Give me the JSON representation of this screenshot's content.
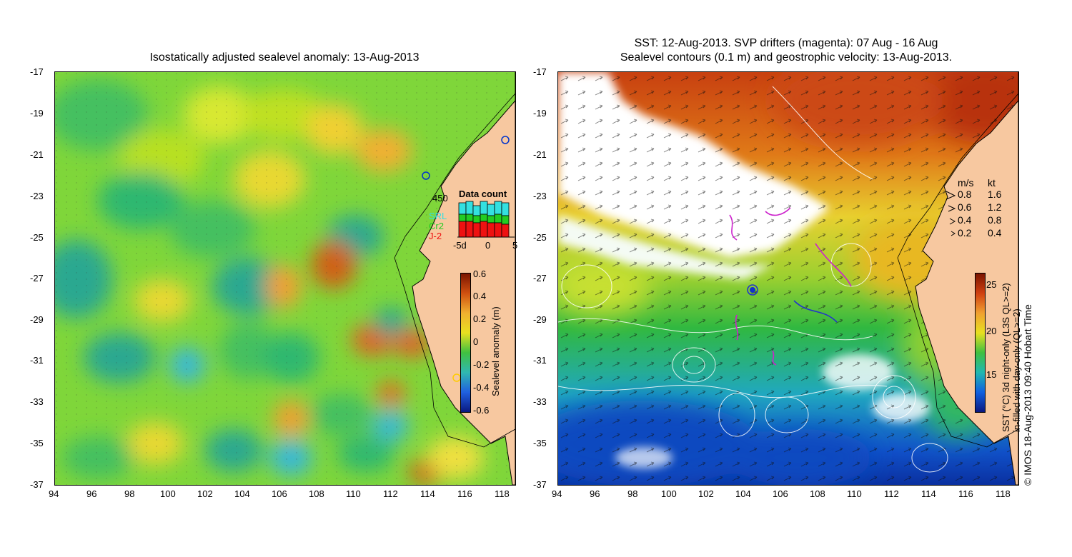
{
  "left_panel": {
    "title": "Isostatically adjusted sealevel anomaly: 13-Aug-2013",
    "y_ticks": [
      "-17",
      "-19",
      "-21",
      "-23",
      "-25",
      "-27",
      "-29",
      "-31",
      "-33",
      "-35",
      "-37"
    ],
    "x_ticks": [
      "94",
      "96",
      "98",
      "100",
      "102",
      "104",
      "106",
      "108",
      "110",
      "112",
      "114",
      "116",
      "118"
    ],
    "data_count": {
      "title": "Data count",
      "max_label": "450",
      "sources": [
        {
          "name": "SRL",
          "color": "#33e0e0"
        },
        {
          "name": "Cr2",
          "color": "#22cc22"
        },
        {
          "name": "J-2",
          "color": "#ee1111"
        }
      ],
      "x_ticks": [
        "-5d",
        "0",
        "5"
      ]
    },
    "colorbar": {
      "label": "Sealevel anomaly (m)",
      "ticks": [
        "0.6",
        "0.4",
        "0.2",
        "0",
        "-0.2",
        "-0.4",
        "-0.6"
      ]
    }
  },
  "right_panel": {
    "title_line1": "SST: 12-Aug-2013. SVP drifters (magenta): 07 Aug - 16 Aug",
    "title_line2": "Sealevel contours (0.1 m) and geostrophic velocity: 13-Aug-2013.",
    "y_ticks": [
      "-17",
      "-19",
      "-21",
      "-23",
      "-25",
      "-27",
      "-29",
      "-31",
      "-33",
      "-35",
      "-37"
    ],
    "x_ticks": [
      "94",
      "96",
      "98",
      "100",
      "102",
      "104",
      "106",
      "108",
      "110",
      "112",
      "114",
      "116",
      "118"
    ],
    "velocity_legend": {
      "header_ms": "m/s",
      "header_kt": "kt",
      "rows": [
        {
          "ms": "0.8",
          "kt": "1.6"
        },
        {
          "ms": "0.6",
          "kt": "1.2"
        },
        {
          "ms": "0.4",
          "kt": "0.8"
        },
        {
          "ms": "0.2",
          "kt": "0.4"
        }
      ]
    },
    "colorbar": {
      "label_line1": "SST (°C) 3d night-only (L3S QL>=2)",
      "label_line2": "in-filled with day-only (QL>=2)",
      "ticks": [
        "25",
        "20",
        "15"
      ]
    },
    "credit": "© IMOS 18-Aug-2013 09:40 Hobart Time"
  },
  "colors": {
    "land": "#f7c8a0",
    "ssh_low": "#0a2aa0",
    "ssh_zero": "#33cc33",
    "ssh_high": "#8b1a00",
    "sst_cold": "#1030c0",
    "sst_mid": "#30c030",
    "sst_warm": "#c03010"
  }
}
